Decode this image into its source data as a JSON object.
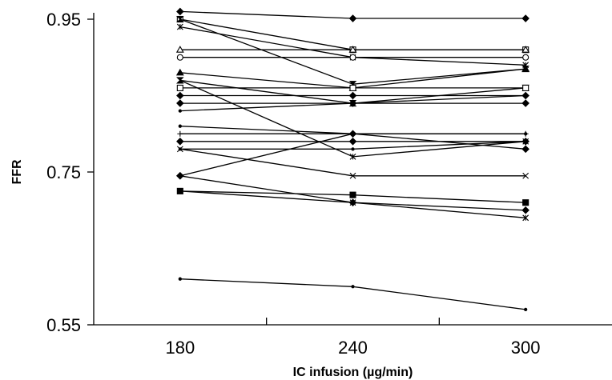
{
  "chart_data": {
    "type": "line",
    "xlabel": "IC infusion (µg/min)",
    "ylabel": "FFR",
    "x_ticks": [
      "180",
      "240",
      "300"
    ],
    "x_values": [
      180,
      240,
      300
    ],
    "y_ticks": [
      "0.95",
      "0.75",
      "0.55"
    ],
    "ylim": [
      0.55,
      0.95
    ],
    "xlim": [
      150,
      330
    ],
    "grid": false,
    "series": [
      {
        "values": [
          0.96,
          0.951,
          0.951
        ],
        "marker": "diamond-filled"
      },
      {
        "values": [
          0.95,
          0.91,
          0.91
        ],
        "marker": "square-open"
      },
      {
        "values": [
          0.95,
          0.865,
          0.885
        ],
        "marker": "hourglass"
      },
      {
        "values": [
          0.94,
          0.9,
          0.89
        ],
        "marker": "asterisk"
      },
      {
        "values": [
          0.91,
          0.91,
          0.91
        ],
        "marker": "triangle-open"
      },
      {
        "values": [
          0.9,
          0.9,
          0.9
        ],
        "marker": "circle-open"
      },
      {
        "values": [
          0.88,
          0.86,
          0.885
        ],
        "marker": "triangle-filled"
      },
      {
        "values": [
          0.87,
          0.84,
          0.86
        ],
        "marker": "hourglass"
      },
      {
        "values": [
          0.87,
          0.77,
          0.79
        ],
        "marker": "asterisk"
      },
      {
        "values": [
          0.86,
          0.86,
          0.86
        ],
        "marker": "square-open"
      },
      {
        "values": [
          0.85,
          0.85,
          0.85
        ],
        "marker": "diamond-filled"
      },
      {
        "values": [
          0.84,
          0.84,
          0.84
        ],
        "marker": "diamond-filled"
      },
      {
        "values": [
          0.83,
          0.84,
          0.85
        ],
        "marker": "dot"
      },
      {
        "values": [
          0.81,
          0.8,
          0.8
        ],
        "marker": "dot"
      },
      {
        "values": [
          0.8,
          0.8,
          0.8
        ],
        "marker": "plus"
      },
      {
        "values": [
          0.79,
          0.79,
          0.79
        ],
        "marker": "diamond-filled"
      },
      {
        "values": [
          0.78,
          0.78,
          0.79
        ],
        "marker": "dot"
      },
      {
        "values": [
          0.78,
          0.745,
          0.745
        ],
        "marker": "cross"
      },
      {
        "values": [
          0.745,
          0.8,
          0.78
        ],
        "marker": "diamond-filled"
      },
      {
        "values": [
          0.745,
          0.71,
          0.7
        ],
        "marker": "diamond-filled"
      },
      {
        "values": [
          0.725,
          0.72,
          0.71
        ],
        "marker": "square-filled"
      },
      {
        "values": [
          0.725,
          0.71,
          0.69
        ],
        "marker": "asterisk"
      },
      {
        "values": [
          0.61,
          0.6,
          0.57
        ],
        "marker": "dot"
      }
    ]
  }
}
